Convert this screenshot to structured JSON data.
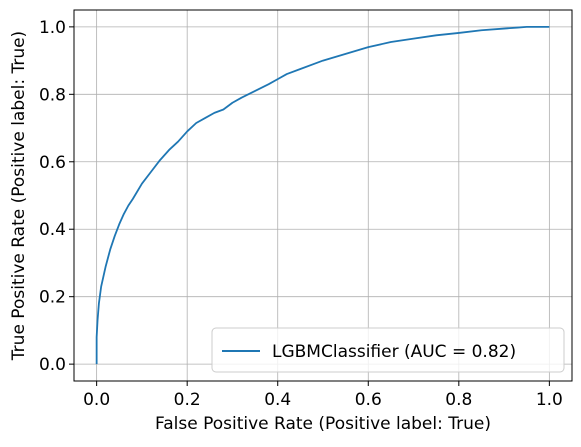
{
  "chart_data": {
    "type": "line",
    "title": "",
    "xlabel": "False Positive Rate (Positive label: True)",
    "ylabel": "True Positive Rate (Positive label: True)",
    "xlim": [
      -0.05,
      1.05
    ],
    "ylim": [
      -0.05,
      1.05
    ],
    "xticks": [
      0.0,
      0.2,
      0.4,
      0.6,
      0.8,
      1.0
    ],
    "yticks": [
      0.0,
      0.2,
      0.4,
      0.6,
      0.8,
      1.0
    ],
    "xtick_labels": [
      "0.0",
      "0.2",
      "0.4",
      "0.6",
      "0.8",
      "1.0"
    ],
    "ytick_labels": [
      "0.0",
      "0.2",
      "0.4",
      "0.6",
      "0.8",
      "1.0"
    ],
    "grid": true,
    "legend_position": "bottom-right",
    "series": [
      {
        "name": "LGBMClassifier (AUC = 0.82)",
        "color": "#1f77b4",
        "x": [
          0.0,
          0.0,
          0.002,
          0.005,
          0.01,
          0.015,
          0.02,
          0.03,
          0.04,
          0.05,
          0.06,
          0.07,
          0.08,
          0.1,
          0.12,
          0.14,
          0.16,
          0.18,
          0.2,
          0.22,
          0.24,
          0.26,
          0.28,
          0.3,
          0.32,
          0.35,
          0.38,
          0.4,
          0.42,
          0.45,
          0.48,
          0.5,
          0.55,
          0.6,
          0.65,
          0.7,
          0.75,
          0.8,
          0.85,
          0.9,
          0.93,
          0.95,
          0.97,
          1.0
        ],
        "y": [
          0.0,
          0.08,
          0.13,
          0.18,
          0.23,
          0.26,
          0.29,
          0.34,
          0.38,
          0.415,
          0.445,
          0.47,
          0.49,
          0.535,
          0.57,
          0.605,
          0.635,
          0.66,
          0.69,
          0.715,
          0.73,
          0.745,
          0.755,
          0.775,
          0.79,
          0.81,
          0.83,
          0.845,
          0.86,
          0.875,
          0.89,
          0.9,
          0.92,
          0.94,
          0.955,
          0.965,
          0.975,
          0.982,
          0.99,
          0.995,
          0.998,
          1.0,
          1.0,
          1.0
        ]
      }
    ]
  }
}
